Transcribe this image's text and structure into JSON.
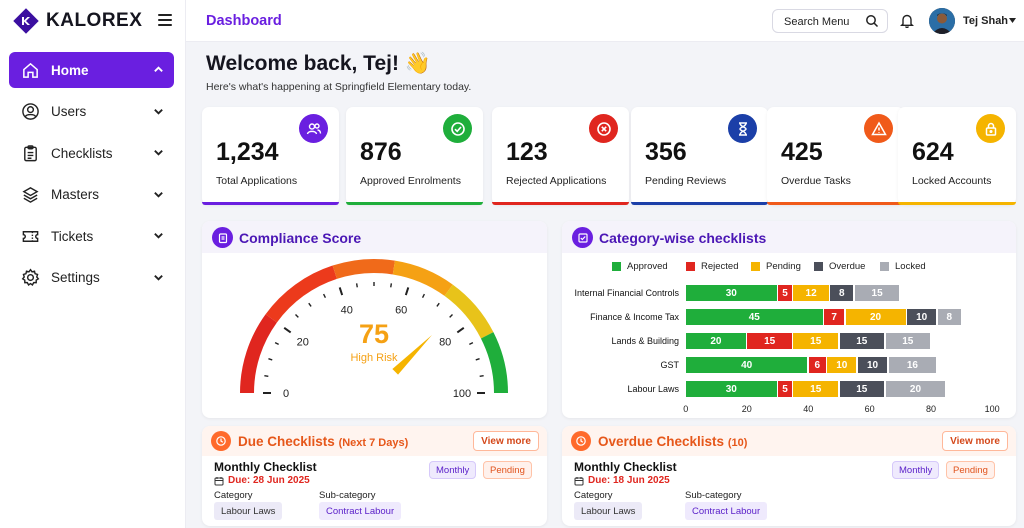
{
  "brand": {
    "name": "KALOREX"
  },
  "sidebar": {
    "items": [
      {
        "label": "Home",
        "icon": "home-icon",
        "active": true
      },
      {
        "label": "Users",
        "icon": "user-icon"
      },
      {
        "label": "Checklists",
        "icon": "clipboard-icon"
      },
      {
        "label": "Masters",
        "icon": "layers-icon"
      },
      {
        "label": "Tickets",
        "icon": "ticket-icon"
      },
      {
        "label": "Settings",
        "icon": "gear-icon"
      }
    ]
  },
  "header": {
    "title": "Dashboard",
    "search_label": "Search Menu",
    "user_name": "Tej Shah"
  },
  "welcome": {
    "title": "Welcome back, Tej! 👋",
    "subtitle": "Here's what's happening at Springfield Elementary today."
  },
  "stats": [
    {
      "value": "1,234",
      "label": "Total Applications",
      "color": "#6a1fe0"
    },
    {
      "value": "876",
      "label": "Approved Enrolments",
      "color": "#1fae3b"
    },
    {
      "value": "123",
      "label": "Rejected Applications",
      "color": "#e0261f"
    },
    {
      "value": "356",
      "label": "Pending Reviews",
      "color": "#1b3fa8"
    },
    {
      "value": "425",
      "label": "Overdue Tasks",
      "color": "#f05a1a"
    },
    {
      "value": "624",
      "label": "Locked Accounts",
      "color": "#f5b400"
    }
  ],
  "compliance": {
    "title": "Compliance Score",
    "score": "75",
    "score_value": 75,
    "status": "High Risk",
    "ticks": [
      "0",
      "20",
      "40",
      "60",
      "80",
      "100"
    ]
  },
  "category": {
    "title": "Category-wise checklists",
    "legend": [
      "Approved",
      "Rejected",
      "Pending",
      "Overdue",
      "Locked"
    ],
    "colors": [
      "#1fae3b",
      "#e0261f",
      "#f5b400",
      "#4b4f5a",
      "#a9acb4"
    ]
  },
  "chart_data": {
    "type": "bar",
    "orientation": "horizontal",
    "stacked": true,
    "categories": [
      "Internal Financial Controls",
      "Finance & Income Tax",
      "Lands & Building",
      "GST",
      "Labour Laws"
    ],
    "series": [
      {
        "name": "Approved",
        "values": [
          30,
          45,
          20,
          40,
          30
        ]
      },
      {
        "name": "Rejected",
        "values": [
          5,
          7,
          15,
          6,
          5
        ]
      },
      {
        "name": "Pending",
        "values": [
          12,
          20,
          15,
          10,
          15
        ]
      },
      {
        "name": "Overdue",
        "values": [
          8,
          10,
          15,
          10,
          15
        ]
      },
      {
        "name": "Locked",
        "values": [
          15,
          8,
          15,
          16,
          20
        ]
      }
    ],
    "xlim": [
      0,
      100
    ],
    "xticks": [
      "0",
      "20",
      "40",
      "60",
      "80",
      "100"
    ],
    "legend_position": "top"
  },
  "due": {
    "title": "Due Checklists",
    "title_suffix": "(Next 7 Days)",
    "view_more": "View more",
    "name": "Monthly Checklist",
    "date": "Due: 28 Jun 2025",
    "frequency": "Monthly",
    "status": "Pending",
    "category_label": "Category",
    "category": "Labour Laws",
    "subcategory_label": "Sub-category",
    "subcategory": "Contract Labour"
  },
  "overdue": {
    "title": "Overdue Checklists",
    "title_suffix": "(10)",
    "view_more": "View more",
    "name": "Monthly Checklist",
    "date": "Due: 18 Jun 2025",
    "frequency": "Monthly",
    "status": "Pending",
    "category_label": "Category",
    "category": "Labour Laws",
    "subcategory_label": "Sub-category",
    "subcategory": "Contract Labour"
  }
}
